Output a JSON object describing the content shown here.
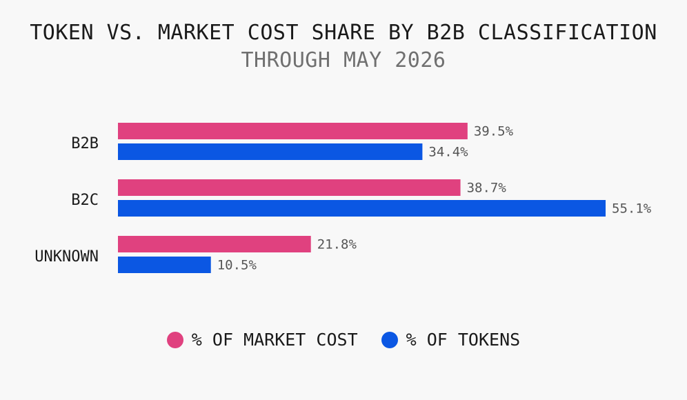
{
  "chart_data": {
    "type": "bar",
    "orientation": "horizontal",
    "title": "TOKEN VS. MARKET COST SHARE BY B2B CLASSIFICATION",
    "subtitle": "THROUGH MAY 2026",
    "categories": [
      "B2B",
      "B2C",
      "UNKNOWN"
    ],
    "series": [
      {
        "name": "% OF MARKET COST",
        "color": "#e0417f",
        "values": [
          39.5,
          38.7,
          21.8
        ],
        "labels": [
          "39.5%",
          "38.7%",
          "21.8%"
        ]
      },
      {
        "name": "% OF TOKENS",
        "color": "#0b57e3",
        "values": [
          34.4,
          55.1,
          10.5
        ],
        "labels": [
          "34.4%",
          "55.1%",
          "10.5%"
        ]
      }
    ],
    "xlim": [
      0,
      55.1
    ],
    "grid": false,
    "legend_position": "bottom"
  }
}
